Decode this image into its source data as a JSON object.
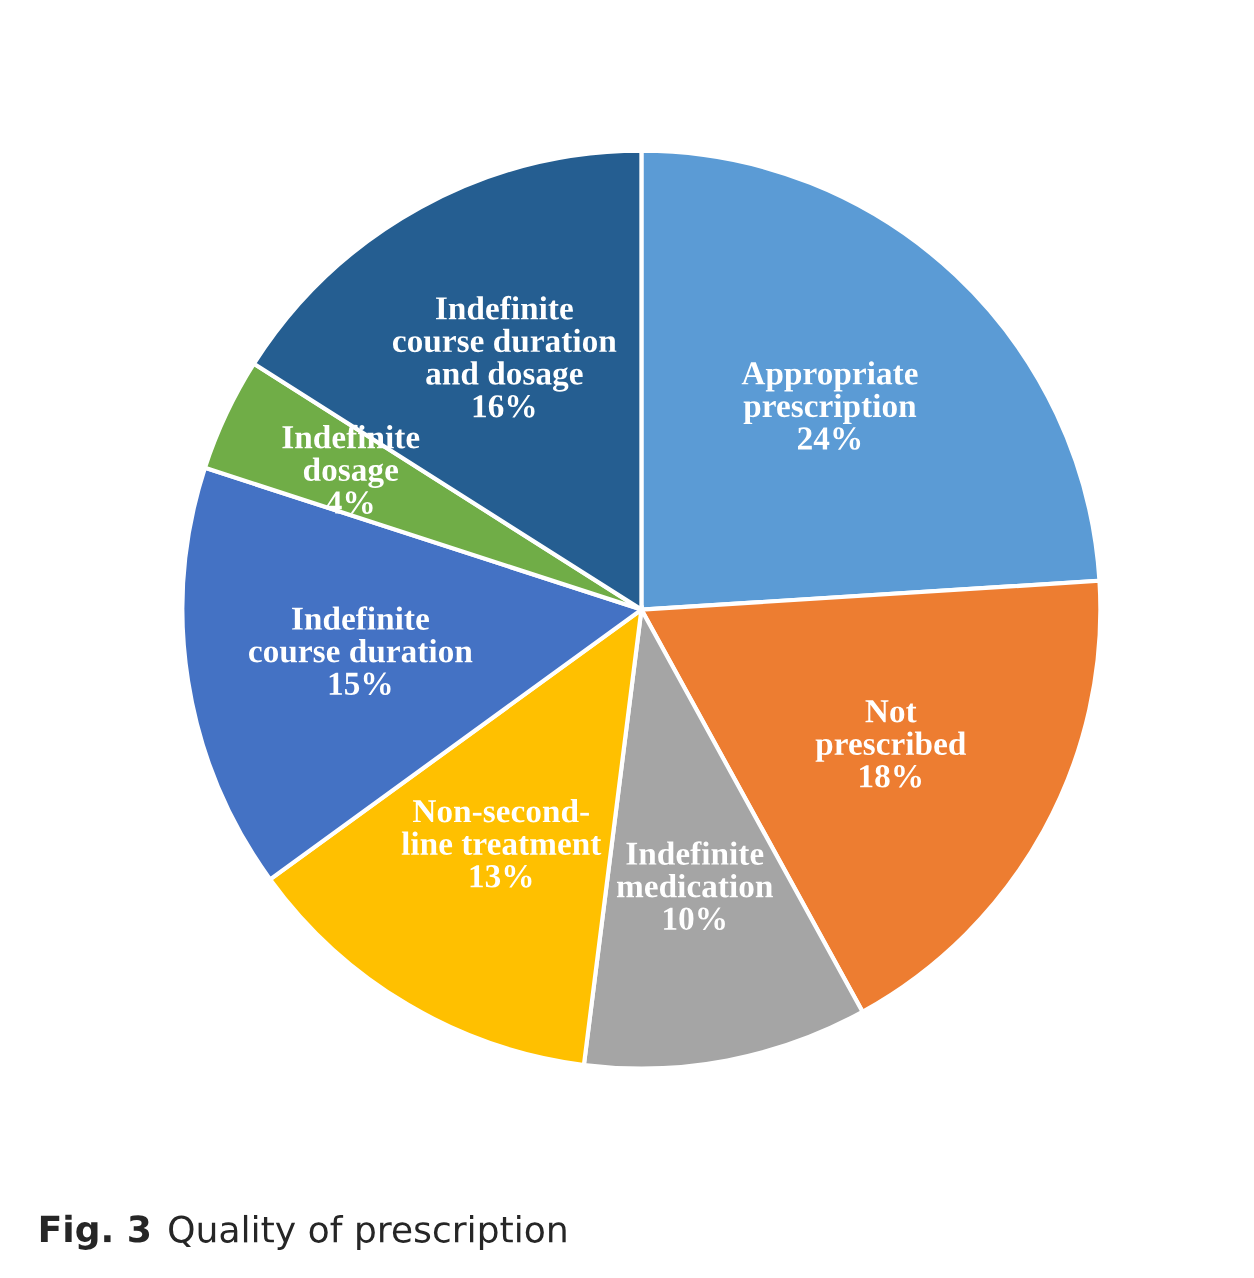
{
  "chart_data": {
    "type": "pie",
    "categories": [
      "Appropriate\nprescription",
      "Not\nprescribed",
      "Indefinite\nmedication",
      "Non-second-\nline treatment",
      "Indefinite\ncourse duration",
      "Indefinite\ndosage",
      "Indefinite\ncourse duration\nand dosage"
    ],
    "values": [
      24,
      18,
      10,
      13,
      15,
      4,
      16
    ],
    "value_labels": [
      "24%",
      "18%",
      "10%",
      "13%",
      "15%",
      "4%",
      "16%"
    ],
    "colors": [
      "#5b9bd5",
      "#ed7d31",
      "#a5a5a5",
      "#ffc000",
      "#4472c4",
      "#70ad47",
      "#255e91"
    ],
    "annotations": [
      "Fig. 3",
      "Quality of prescription"
    ]
  }
}
